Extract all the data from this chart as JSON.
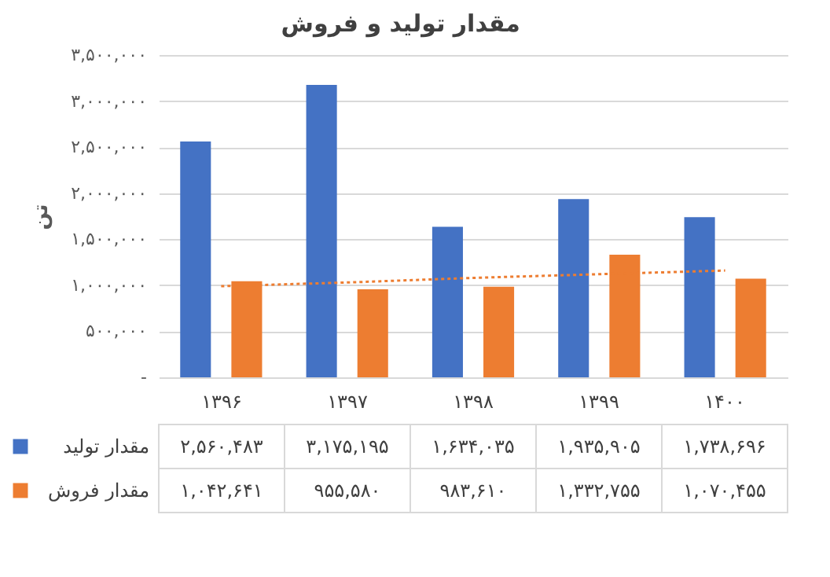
{
  "chart_data": {
    "type": "bar",
    "title": "مقدار تولید و فروش",
    "ylabel": "تن",
    "categories": [
      "۱۳۹۶",
      "۱۳۹۷",
      "۱۳۹۸",
      "۱۳۹۹",
      "۱۴۰۰"
    ],
    "series": [
      {
        "name": "مقدار تولید",
        "color": "#4472c4",
        "values": [
          2560483,
          3175195,
          1634035,
          1935905,
          1738696
        ],
        "value_labels": [
          "۲,۵۶۰,۴۸۳",
          "۳,۱۷۵,۱۹۵",
          "۱,۶۳۴,۰۳۵",
          "۱,۹۳۵,۹۰۵",
          "۱,۷۳۸,۶۹۶"
        ]
      },
      {
        "name": "مقدار فروش",
        "color": "#ed7d31",
        "values": [
          1042641,
          955580,
          983610,
          1332755,
          1070455
        ],
        "value_labels": [
          "۱,۰۴۲,۶۴۱",
          "۹۵۵,۵۸۰",
          "۹۸۳,۶۱۰",
          "۱,۳۳۲,۷۵۵",
          "۱,۰۷۰,۴۵۵"
        ]
      },
      {
        "type": "line",
        "color": "#ed7d31",
        "line_style": "dotted",
        "values": [
          990000,
          1030000,
          1080000,
          1120000,
          1160000
        ]
      }
    ],
    "ylim": [
      0,
      3500000
    ],
    "yticks": [
      {
        "value": 0,
        "label": "-"
      },
      {
        "value": 500000,
        "label": "۵۰۰,۰۰۰"
      },
      {
        "value": 1000000,
        "label": "۱,۰۰۰,۰۰۰"
      },
      {
        "value": 1500000,
        "label": "۱,۵۰۰,۰۰۰"
      },
      {
        "value": 2000000,
        "label": "۲,۰۰۰,۰۰۰"
      },
      {
        "value": 2500000,
        "label": "۲,۵۰۰,۰۰۰"
      },
      {
        "value": 3000000,
        "label": "۳,۰۰۰,۰۰۰"
      },
      {
        "value": 3500000,
        "label": "۳,۵۰۰,۰۰۰"
      }
    ],
    "grid": "y",
    "legend": "bottom"
  }
}
